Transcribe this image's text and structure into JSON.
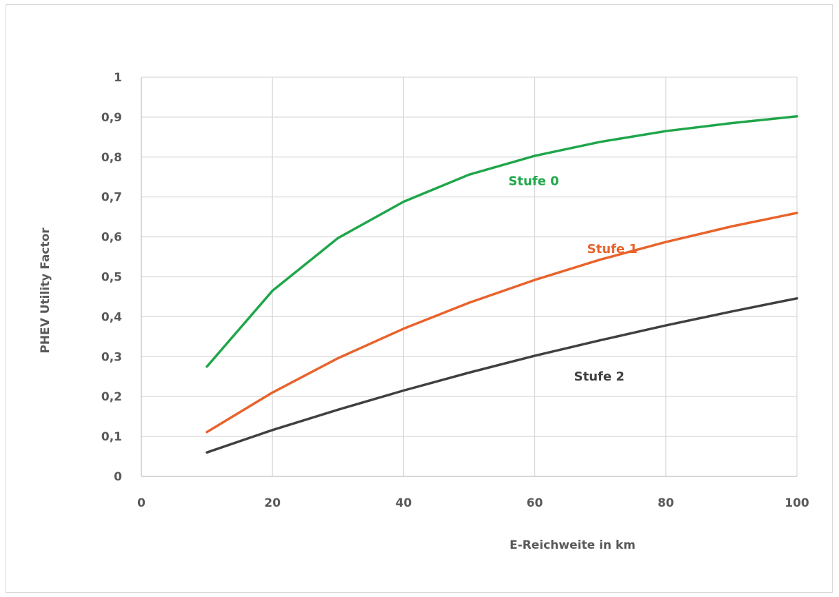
{
  "chart_data": {
    "type": "line",
    "title": "",
    "xlabel": "E-Reichweite in km",
    "ylabel": "PHEV Utility Factor",
    "xlim": [
      0,
      100
    ],
    "ylim": [
      0,
      1
    ],
    "x_ticks": [
      0,
      20,
      40,
      60,
      80,
      100
    ],
    "x_tick_labels": [
      "0",
      "20",
      "40",
      "60",
      "80",
      "100"
    ],
    "y_ticks": [
      0,
      0.1,
      0.2,
      0.3,
      0.4,
      0.5,
      0.6,
      0.7,
      0.8,
      0.9,
      1
    ],
    "y_tick_labels": [
      "0",
      "0,1",
      "0,2",
      "0,3",
      "0,4",
      "0,5",
      "0,6",
      "0,7",
      "0,8",
      "0,9",
      "1"
    ],
    "grid": true,
    "legend": "none",
    "x": [
      10,
      20,
      30,
      40,
      50,
      60,
      70,
      80,
      90,
      100
    ],
    "series": [
      {
        "name": "Stufe 0",
        "color": "#1fa64a",
        "values": [
          0.275,
          0.465,
          0.597,
          0.688,
          0.756,
          0.803,
          0.838,
          0.865,
          0.885,
          0.902
        ],
        "label_at": [
          56,
          0.73
        ]
      },
      {
        "name": "Stufe 1",
        "color": "#e8632b",
        "values": [
          0.111,
          0.21,
          0.296,
          0.37,
          0.435,
          0.492,
          0.543,
          0.587,
          0.626,
          0.66
        ],
        "label_at": [
          68,
          0.56
        ]
      },
      {
        "name": "Stufe 2",
        "color": "#404040",
        "values": [
          0.06,
          0.116,
          0.167,
          0.215,
          0.26,
          0.302,
          0.341,
          0.378,
          0.413,
          0.446
        ],
        "label_at": [
          66,
          0.24
        ]
      }
    ]
  }
}
